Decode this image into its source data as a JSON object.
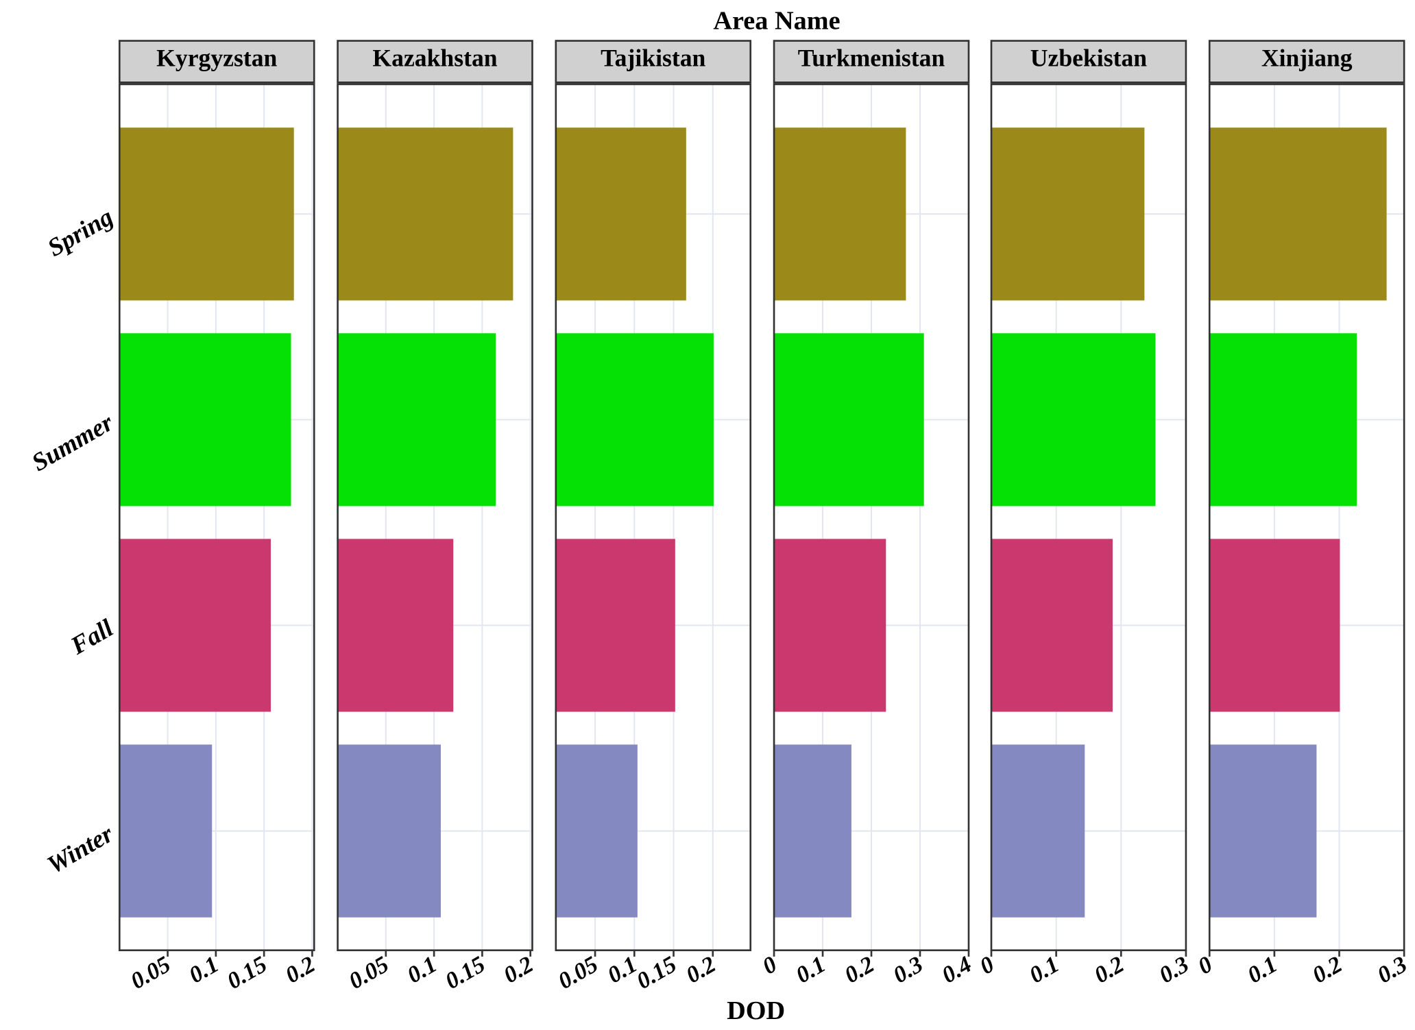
{
  "chart_data": {
    "type": "bar",
    "orientation": "horizontal",
    "title": "Area Name",
    "x_label": "DOD",
    "categories": [
      "Spring",
      "Summer",
      "Fall",
      "Winter"
    ],
    "colors": [
      "#9b8a1a",
      "#05e005",
      "#cb386d",
      "#8489c1"
    ],
    "grid": true,
    "panels": [
      {
        "name": "Kyrgyzstan",
        "values": [
          0.181,
          0.178,
          0.157,
          0.096
        ],
        "xlim": [
          0,
          0.202
        ],
        "xticks": [
          0.05,
          0.1,
          0.15,
          0.2
        ]
      },
      {
        "name": "Kazakhstan",
        "values": [
          0.182,
          0.164,
          0.12,
          0.107
        ],
        "xlim": [
          0,
          0.202
        ],
        "xticks": [
          0.05,
          0.1,
          0.15,
          0.2
        ]
      },
      {
        "name": "Tajikistan",
        "values": [
          0.166,
          0.201,
          0.152,
          0.104
        ],
        "xlim": [
          0,
          0.248
        ],
        "xticks": [
          0.05,
          0.1,
          0.15,
          0.2
        ]
      },
      {
        "name": "Turkmenistan",
        "values": [
          0.271,
          0.308,
          0.23,
          0.159
        ],
        "xlim": [
          0,
          0.4
        ],
        "xticks": [
          0,
          0.1,
          0.2,
          0.3,
          0.4
        ]
      },
      {
        "name": "Uzbekistan",
        "values": [
          0.236,
          0.253,
          0.187,
          0.144
        ],
        "xlim": [
          0,
          0.3
        ],
        "xticks": [
          0,
          0.1,
          0.2,
          0.3
        ]
      },
      {
        "name": "Xinjiang",
        "values": [
          0.273,
          0.227,
          0.201,
          0.165
        ],
        "xlim": [
          0,
          0.3
        ],
        "xticks": [
          0,
          0.1,
          0.2,
          0.3
        ]
      }
    ]
  }
}
